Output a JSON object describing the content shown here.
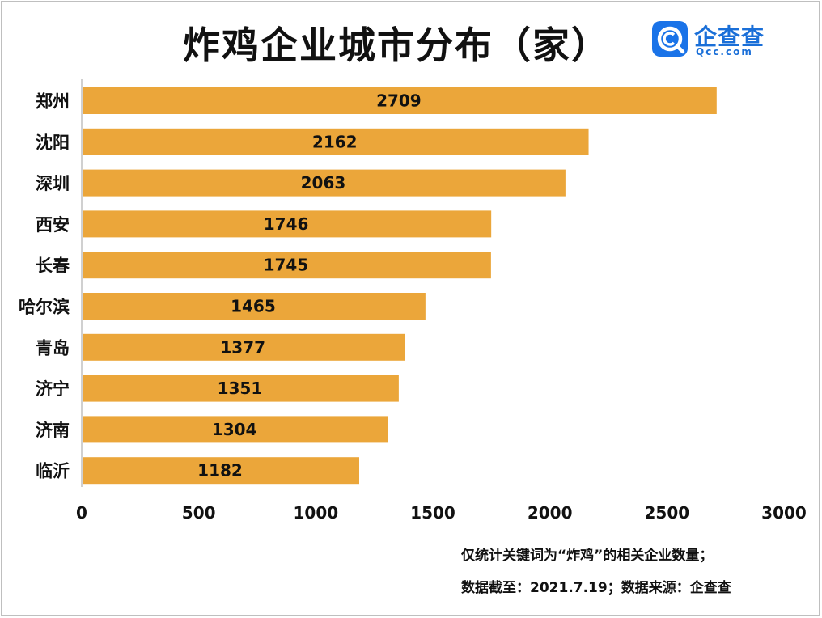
{
  "title": "炸鸡企业城市分布（家）",
  "logo": {
    "name": "企查查",
    "domain": "Qcc.com",
    "brand_color": "#1a73e8"
  },
  "notes": {
    "line1": "仅统计关键词为“炸鸡”的相关企业数量；",
    "line2": "数据截至：2021.7.19；数据来源：企查查"
  },
  "chart_data": {
    "type": "bar",
    "orientation": "horizontal",
    "categories": [
      "郑州",
      "沈阳",
      "深圳",
      "西安",
      "长春",
      "哈尔滨",
      "青岛",
      "济宁",
      "济南",
      "临沂"
    ],
    "values": [
      2709,
      2162,
      2063,
      1746,
      1745,
      1465,
      1377,
      1351,
      1304,
      1182
    ],
    "xlim": [
      0,
      3000
    ],
    "xticks": [
      0,
      500,
      1000,
      1500,
      2000,
      2500,
      3000
    ],
    "bar_color": "#eba63a",
    "grid": false,
    "legend": false
  }
}
